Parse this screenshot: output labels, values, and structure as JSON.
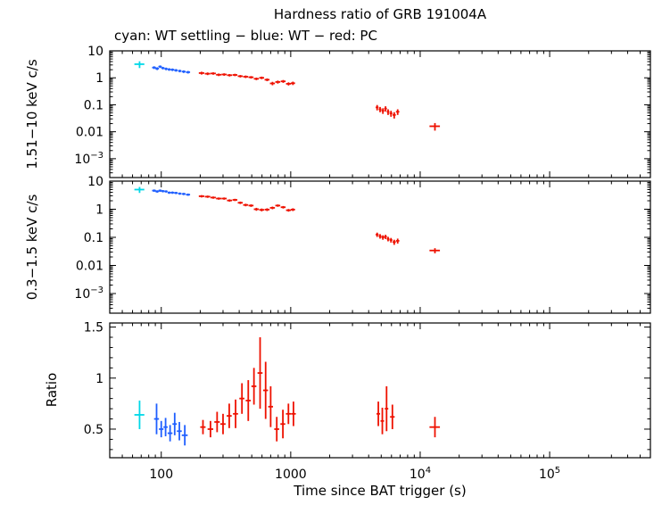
{
  "figure": {
    "title": "Hardness ratio of GRB 191004A",
    "subtitle": "cyan: WT settling − blue: WT − red: PC",
    "xlabel": "Time since BAT trigger (s)",
    "ylabel_top": "1.51−10 keV c/s",
    "ylabel_middle": "0.3−1.5 keV c/s",
    "ylabel_bottom": "Ratio"
  },
  "chart_data": {
    "type": "scatter",
    "subtype": "multi-panel error-bar plot",
    "title": "Hardness ratio of GRB 191004A",
    "legend_text": "cyan: WT settling − blue: WT − red: PC",
    "xlabel": "Time since BAT trigger (s)",
    "xscale": "log",
    "xlim": [
      40,
      600000
    ],
    "xticks": [
      {
        "v": 100,
        "t": "100"
      },
      {
        "v": 1000,
        "t": "1000"
      },
      {
        "v": 10000,
        "t": "10",
        "exp": "4"
      },
      {
        "v": 100000,
        "t": "10",
        "exp": "5"
      }
    ],
    "panels": [
      {
        "id": "hard",
        "ylabel": "1.51−10 keV c/s",
        "yscale": "log",
        "ylim": [
          0.0002,
          10
        ],
        "yticks": [
          {
            "v": 10,
            "t": "10"
          },
          {
            "v": 1,
            "t": "1"
          },
          {
            "v": 0.1,
            "t": "0.1"
          },
          {
            "v": 0.01,
            "t": "0.01"
          },
          {
            "v": 0.001,
            "t": "10",
            "exp": "−3"
          }
        ]
      },
      {
        "id": "soft",
        "ylabel": "0.3−1.5 keV c/s",
        "yscale": "log",
        "ylim": [
          0.0002,
          10
        ],
        "yticks": [
          {
            "v": 10,
            "t": "10"
          },
          {
            "v": 1,
            "t": "1"
          },
          {
            "v": 0.1,
            "t": "0.1"
          },
          {
            "v": 0.01,
            "t": "0.01"
          },
          {
            "v": 0.001,
            "t": "10",
            "exp": "−3"
          }
        ]
      },
      {
        "id": "ratio",
        "ylabel": "Ratio",
        "yscale": "linear",
        "ylim": [
          0.22,
          1.54
        ],
        "yticks": [
          {
            "v": 1.5,
            "t": "1.5"
          },
          {
            "v": 1,
            "t": "1"
          },
          {
            "v": 0.5,
            "t": "0.5"
          }
        ]
      }
    ],
    "series": {
      "wt_settling": {
        "label": "WT settling",
        "color_name": "cyan",
        "color_hex": "#00D8E8",
        "hard": [
          [
            68,
            6,
            3.2,
            0.9
          ]
        ],
        "soft": [
          [
            68,
            6,
            5.0,
            1.2
          ]
        ],
        "ratio": [
          [
            68,
            6,
            0.64,
            0.14
          ]
        ]
      },
      "wt": {
        "label": "WT",
        "color_name": "blue",
        "color_hex": "#1F5FFF",
        "hard": [
          [
            88,
            3,
            2.4,
            0.28
          ],
          [
            93,
            3,
            2.2,
            0.26
          ],
          [
            98,
            3,
            2.6,
            0.28
          ],
          [
            103,
            3,
            2.3,
            0.25
          ],
          [
            109,
            3,
            2.15,
            0.24
          ],
          [
            115,
            3,
            2.05,
            0.23
          ],
          [
            122,
            4,
            2.0,
            0.22
          ],
          [
            130,
            4,
            1.9,
            0.21
          ],
          [
            139,
            4,
            1.8,
            0.2
          ],
          [
            149,
            5,
            1.7,
            0.19
          ],
          [
            161,
            6,
            1.62,
            0.18
          ]
        ],
        "soft": [
          [
            88,
            3,
            4.6,
            0.45
          ],
          [
            93,
            3,
            4.3,
            0.42
          ],
          [
            98,
            3,
            4.6,
            0.45
          ],
          [
            103,
            3,
            4.4,
            0.42
          ],
          [
            109,
            3,
            4.3,
            0.4
          ],
          [
            115,
            3,
            3.9,
            0.38
          ],
          [
            122,
            4,
            3.9,
            0.38
          ],
          [
            130,
            4,
            3.8,
            0.36
          ],
          [
            139,
            4,
            3.6,
            0.34
          ],
          [
            149,
            5,
            3.5,
            0.33
          ],
          [
            161,
            6,
            3.3,
            0.31
          ]
        ],
        "ratio": [
          [
            92,
            4,
            0.6,
            0.15
          ],
          [
            100,
            4,
            0.5,
            0.08
          ],
          [
            108,
            4,
            0.52,
            0.09
          ],
          [
            117,
            5,
            0.46,
            0.08
          ],
          [
            127,
            5,
            0.55,
            0.11
          ],
          [
            138,
            6,
            0.48,
            0.09
          ],
          [
            152,
            8,
            0.44,
            0.1
          ]
        ]
      },
      "pc": {
        "label": "PC",
        "color_name": "red",
        "color_hex": "#EE1100",
        "hard": [
          [
            205,
            10,
            1.5,
            0.18
          ],
          [
            228,
            11,
            1.42,
            0.16
          ],
          [
            252,
            12,
            1.45,
            0.15
          ],
          [
            278,
            13,
            1.3,
            0.14
          ],
          [
            306,
            14,
            1.33,
            0.14
          ],
          [
            337,
            15,
            1.25,
            0.13
          ],
          [
            371,
            16,
            1.28,
            0.13
          ],
          [
            408,
            18,
            1.15,
            0.12
          ],
          [
            449,
            20,
            1.1,
            0.12
          ],
          [
            494,
            22,
            1.05,
            0.11
          ],
          [
            543,
            24,
            0.92,
            0.1
          ],
          [
            597,
            26,
            1.0,
            0.11
          ],
          [
            657,
            29,
            0.85,
            0.1
          ],
          [
            723,
            32,
            0.62,
            0.09
          ],
          [
            795,
            35,
            0.7,
            0.09
          ],
          [
            875,
            38,
            0.74,
            0.09
          ],
          [
            962,
            42,
            0.6,
            0.08
          ],
          [
            1040,
            40,
            0.63,
            0.09
          ],
          [
            4650,
            120,
            0.08,
            0.018
          ],
          [
            4900,
            120,
            0.068,
            0.015
          ],
          [
            5150,
            130,
            0.06,
            0.014
          ],
          [
            5400,
            130,
            0.072,
            0.016
          ],
          [
            5650,
            130,
            0.055,
            0.013
          ],
          [
            5950,
            150,
            0.048,
            0.012
          ],
          [
            6300,
            180,
            0.042,
            0.011
          ],
          [
            6700,
            200,
            0.055,
            0.013
          ],
          [
            13000,
            1200,
            0.016,
            0.005
          ]
        ],
        "soft": [
          [
            205,
            10,
            2.9,
            0.28
          ],
          [
            228,
            11,
            2.8,
            0.26
          ],
          [
            252,
            12,
            2.6,
            0.24
          ],
          [
            278,
            13,
            2.4,
            0.22
          ],
          [
            306,
            14,
            2.4,
            0.22
          ],
          [
            337,
            15,
            2.05,
            0.2
          ],
          [
            371,
            16,
            2.15,
            0.2
          ],
          [
            408,
            18,
            1.7,
            0.17
          ],
          [
            449,
            20,
            1.42,
            0.15
          ],
          [
            494,
            22,
            1.35,
            0.14
          ],
          [
            543,
            24,
            1.0,
            0.12
          ],
          [
            597,
            26,
            0.95,
            0.11
          ],
          [
            657,
            29,
            0.97,
            0.11
          ],
          [
            723,
            32,
            1.12,
            0.12
          ],
          [
            795,
            35,
            1.35,
            0.13
          ],
          [
            875,
            38,
            1.18,
            0.12
          ],
          [
            962,
            42,
            0.92,
            0.1
          ],
          [
            1040,
            40,
            0.97,
            0.11
          ],
          [
            4650,
            120,
            0.125,
            0.022
          ],
          [
            4900,
            120,
            0.11,
            0.02
          ],
          [
            5150,
            130,
            0.1,
            0.018
          ],
          [
            5400,
            130,
            0.105,
            0.018
          ],
          [
            5650,
            130,
            0.088,
            0.016
          ],
          [
            5950,
            150,
            0.08,
            0.015
          ],
          [
            6300,
            180,
            0.068,
            0.014
          ],
          [
            6700,
            200,
            0.075,
            0.015
          ],
          [
            13000,
            1200,
            0.034,
            0.007
          ]
        ],
        "ratio": [
          [
            210,
            10,
            0.52,
            0.07
          ],
          [
            240,
            12,
            0.5,
            0.08
          ],
          [
            270,
            13,
            0.57,
            0.1
          ],
          [
            300,
            14,
            0.55,
            0.1
          ],
          [
            335,
            15,
            0.63,
            0.12
          ],
          [
            375,
            17,
            0.65,
            0.14
          ],
          [
            420,
            19,
            0.8,
            0.15
          ],
          [
            470,
            21,
            0.78,
            0.2
          ],
          [
            520,
            23,
            0.92,
            0.18
          ],
          [
            580,
            26,
            1.05,
            0.35
          ],
          [
            640,
            28,
            0.88,
            0.28
          ],
          [
            700,
            30,
            0.72,
            0.2
          ],
          [
            780,
            34,
            0.5,
            0.12
          ],
          [
            870,
            38,
            0.55,
            0.14
          ],
          [
            960,
            42,
            0.65,
            0.1
          ],
          [
            1050,
            45,
            0.65,
            0.12
          ],
          [
            4750,
            150,
            0.65,
            0.12
          ],
          [
            5100,
            160,
            0.58,
            0.13
          ],
          [
            5500,
            170,
            0.7,
            0.22
          ],
          [
            6100,
            250,
            0.62,
            0.12
          ],
          [
            13000,
            1200,
            0.52,
            0.1
          ]
        ]
      }
    }
  }
}
